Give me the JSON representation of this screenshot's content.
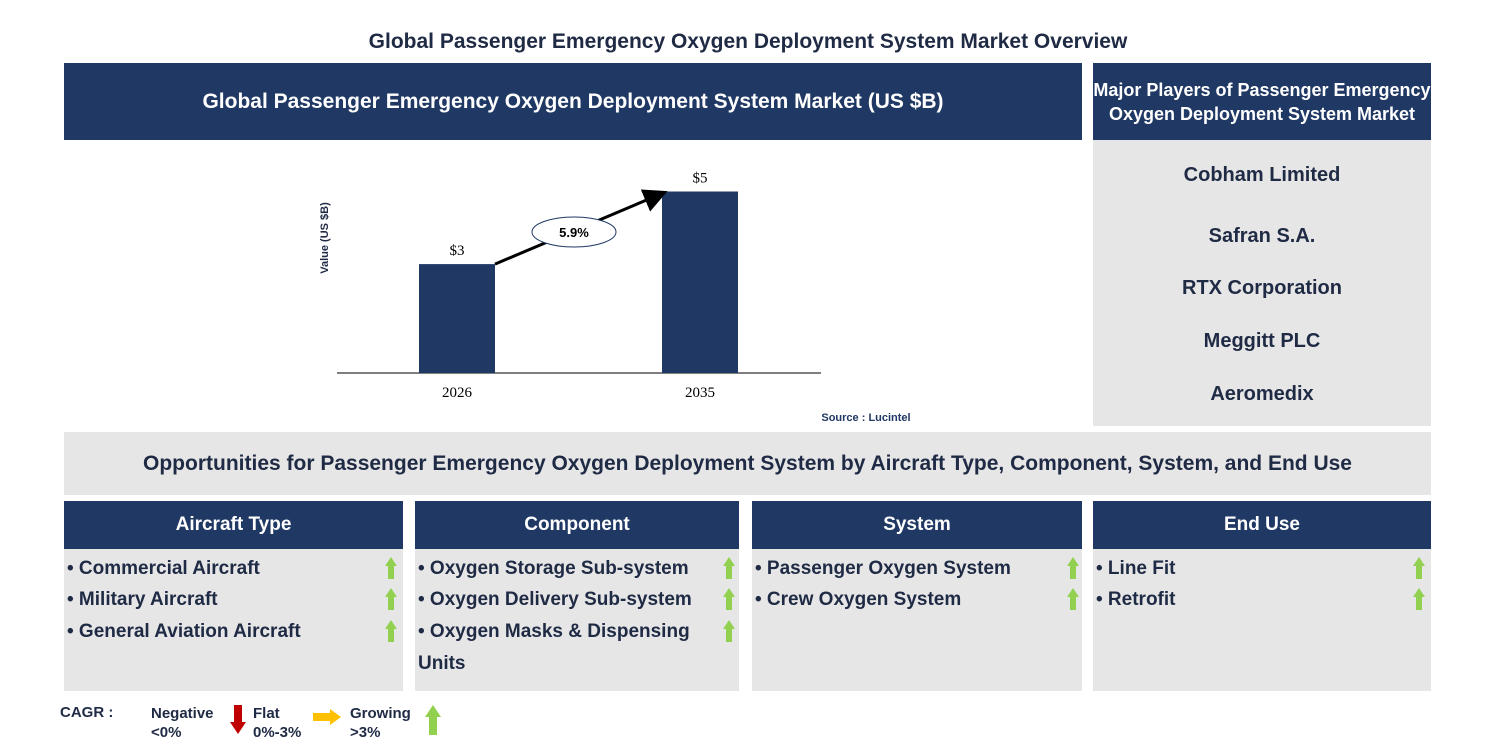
{
  "title": "Global Passenger Emergency Oxygen Deployment System Market Overview",
  "chart_header": "Global Passenger Emergency Oxygen Deployment System Market (US $B)",
  "chart_data": {
    "type": "bar",
    "categories": [
      "2026",
      "2035"
    ],
    "values": [
      3,
      5
    ],
    "data_labels": [
      "$3",
      "$5"
    ],
    "ylabel": "Value (US $B)",
    "cagr_label": "5.9%",
    "source": "Source : Lucintel",
    "color": "#203864"
  },
  "players": {
    "header": "Major Players of Passenger Emergency Oxygen Deployment System Market",
    "items": [
      "Cobham Limited",
      "Safran S.A.",
      "RTX Corporation",
      "Meggitt PLC",
      "Aeromedix"
    ]
  },
  "opportunities_title": "Opportunities for Passenger Emergency Oxygen Deployment System by Aircraft Type, Component, System, and End Use",
  "segments": [
    {
      "header": "Aircraft Type",
      "items": [
        "• Commercial Aircraft",
        "• Military Aircraft",
        "• General Aviation Aircraft"
      ]
    },
    {
      "header": "Component",
      "items": [
        "• Oxygen Storage Sub-system",
        "• Oxygen Delivery Sub-system",
        "• Oxygen Masks & Dispensing Units"
      ]
    },
    {
      "header": "System",
      "items": [
        "• Passenger Oxygen System",
        "• Crew Oxygen System"
      ]
    },
    {
      "header": "End Use",
      "items": [
        "• Line Fit",
        "• Retrofit"
      ]
    }
  ],
  "legend": {
    "label": "CAGR :",
    "negative": "Negative",
    "negative_range": "<0%",
    "flat": "Flat",
    "flat_range": "0%-3%",
    "growing": "Growing",
    "growing_range": ">3%",
    "colors": {
      "negative": "#c00000",
      "flat": "#ffc000",
      "growing": "#92d050"
    }
  }
}
